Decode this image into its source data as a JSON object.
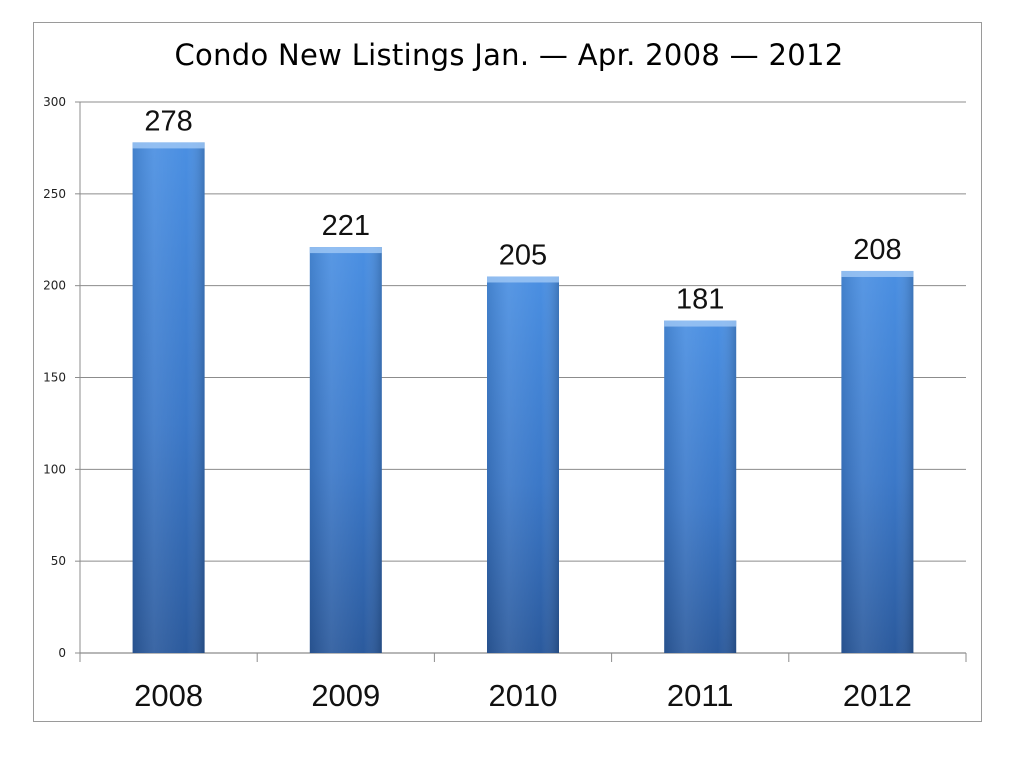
{
  "chart_data": {
    "type": "bar",
    "title": "Condo New Listings Jan. — Apr. 2008 — 2012",
    "categories": [
      "2008",
      "2009",
      "2010",
      "2011",
      "2012"
    ],
    "values": [
      278,
      221,
      205,
      181,
      208
    ],
    "xlabel": "",
    "ylabel": "",
    "ylim": [
      0,
      300
    ],
    "yticks": [
      "0",
      "50",
      "100",
      "150",
      "200",
      "250",
      "300"
    ],
    "data_labels": [
      "278",
      "221",
      "205",
      "181",
      "208"
    ],
    "grid": true,
    "legend": "none",
    "colors": {
      "bar_light": "#4a8ee0",
      "bar_mid": "#3a7bd0",
      "bar_dark": "#2d5fa6",
      "bar_top": "#9cc6f5",
      "grid": "#8c8c8c"
    }
  }
}
